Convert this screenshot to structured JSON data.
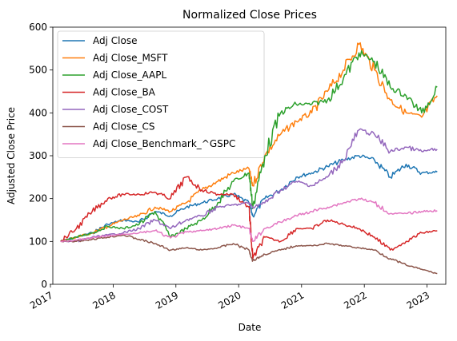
{
  "chart_data": {
    "type": "line",
    "title": "Normalized Close Prices",
    "xlabel": "Date",
    "ylabel": "Adjusted Close Price",
    "xlim": [
      "2017-01-15",
      "2023-04-20"
    ],
    "ylim": [
      0,
      600
    ],
    "x_ticks": [
      {
        "date": "2017-01-01",
        "label": "2017"
      },
      {
        "date": "2018-01-01",
        "label": "2018"
      },
      {
        "date": "2019-01-01",
        "label": "2019"
      },
      {
        "date": "2020-01-01",
        "label": "2020"
      },
      {
        "date": "2021-01-01",
        "label": "2021"
      },
      {
        "date": "2022-01-01",
        "label": "2022"
      },
      {
        "date": "2023-01-01",
        "label": "2023"
      }
    ],
    "y_ticks": [
      0,
      100,
      200,
      300,
      400,
      500,
      600
    ],
    "legend": "upper left",
    "grid": false,
    "x": [
      "2017-03-01",
      "2017-06-01",
      "2017-09-01",
      "2017-12-01",
      "2018-03-01",
      "2018-06-01",
      "2018-09-01",
      "2018-12-01",
      "2019-03-01",
      "2019-06-01",
      "2019-09-01",
      "2019-12-01",
      "2020-03-01",
      "2020-03-23",
      "2020-06-01",
      "2020-09-01",
      "2020-12-01",
      "2021-03-01",
      "2021-06-01",
      "2021-09-01",
      "2021-12-01",
      "2022-03-01",
      "2022-06-01",
      "2022-09-01",
      "2022-12-01",
      "2023-03-01"
    ],
    "series": [
      {
        "name": "Adj Close",
        "color": "#1f77b4",
        "values": [
          100,
          110,
          120,
          140,
          150,
          145,
          170,
          160,
          180,
          190,
          200,
          210,
          190,
          160,
          200,
          220,
          250,
          260,
          275,
          290,
          300,
          290,
          250,
          280,
          260,
          262
        ]
      },
      {
        "name": "Adj Close_MSFT",
        "color": "#ff7f0e",
        "values": [
          100,
          110,
          120,
          135,
          150,
          160,
          180,
          170,
          190,
          220,
          240,
          260,
          270,
          230,
          300,
          350,
          380,
          400,
          450,
          500,
          560,
          500,
          430,
          400,
          390,
          440
        ]
      },
      {
        "name": "Adj Close_AAPL",
        "color": "#2ca02c",
        "values": [
          100,
          110,
          120,
          135,
          130,
          140,
          170,
          110,
          130,
          150,
          190,
          240,
          260,
          180,
          300,
          400,
          420,
          420,
          430,
          480,
          540,
          520,
          460,
          440,
          400,
          460
        ]
      },
      {
        "name": "Adj Close_BA",
        "color": "#d62728",
        "values": [
          100,
          130,
          170,
          200,
          210,
          210,
          215,
          200,
          250,
          220,
          210,
          210,
          180,
          60,
          110,
          100,
          130,
          130,
          150,
          140,
          130,
          110,
          80,
          100,
          120,
          125
        ]
      },
      {
        "name": "Adj Close_COST",
        "color": "#9467bd",
        "values": [
          100,
          100,
          110,
          115,
          120,
          130,
          150,
          130,
          150,
          160,
          180,
          185,
          190,
          180,
          190,
          220,
          240,
          230,
          250,
          290,
          360,
          350,
          310,
          320,
          310,
          315
        ]
      },
      {
        "name": "Adj Close_CS",
        "color": "#8c564b",
        "values": [
          100,
          100,
          105,
          110,
          115,
          105,
          95,
          80,
          85,
          80,
          85,
          95,
          80,
          55,
          70,
          80,
          90,
          90,
          95,
          90,
          85,
          80,
          60,
          45,
          35,
          25
        ]
      },
      {
        "name": "Adj Close_Benchmark_^GSPC",
        "color": "#e377c2",
        "values": [
          100,
          103,
          108,
          113,
          117,
          120,
          125,
          108,
          122,
          125,
          130,
          138,
          130,
          100,
          130,
          145,
          160,
          170,
          180,
          190,
          200,
          190,
          165,
          165,
          170,
          172
        ]
      }
    ]
  }
}
